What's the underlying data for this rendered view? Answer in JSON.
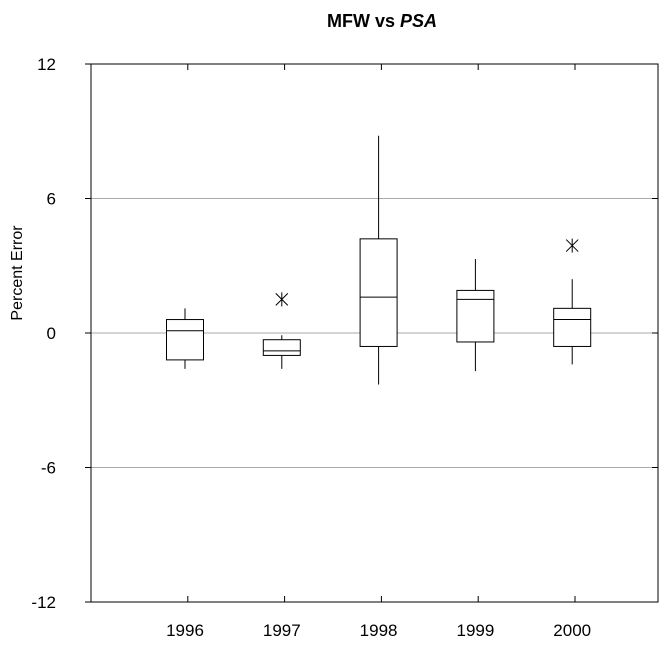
{
  "chart_data": {
    "type": "box",
    "title": "MFW vs ",
    "title_italic": "PSA",
    "xlabel": "",
    "ylabel": "Percent Error",
    "ylim": [
      -12,
      12
    ],
    "yticks": [
      "12",
      "6",
      "0",
      "-6",
      "-12"
    ],
    "yticks_values": [
      12,
      6,
      0,
      -6,
      -12
    ],
    "grid": "horizontal",
    "categories": [
      "1996",
      "1997",
      "1998",
      "1999",
      "2000"
    ],
    "boxes": [
      {
        "whisker_low": -1.6,
        "q1": -1.2,
        "median": 0.1,
        "q3": 0.6,
        "whisker_high": 1.1,
        "outliers": []
      },
      {
        "whisker_low": -1.6,
        "q1": -1.0,
        "median": -0.8,
        "q3": -0.3,
        "whisker_high": -0.1,
        "outliers": [
          1.5
        ]
      },
      {
        "whisker_low": -2.3,
        "q1": -0.6,
        "median": 1.6,
        "q3": 4.2,
        "whisker_high": 8.8,
        "outliers": []
      },
      {
        "whisker_low": -1.7,
        "q1": -0.4,
        "median": 1.5,
        "q3": 1.9,
        "whisker_high": 3.3,
        "outliers": []
      },
      {
        "whisker_low": -1.4,
        "q1": -0.6,
        "median": 0.6,
        "q3": 1.1,
        "whisker_high": 2.4,
        "outliers": [
          3.9
        ]
      }
    ]
  }
}
